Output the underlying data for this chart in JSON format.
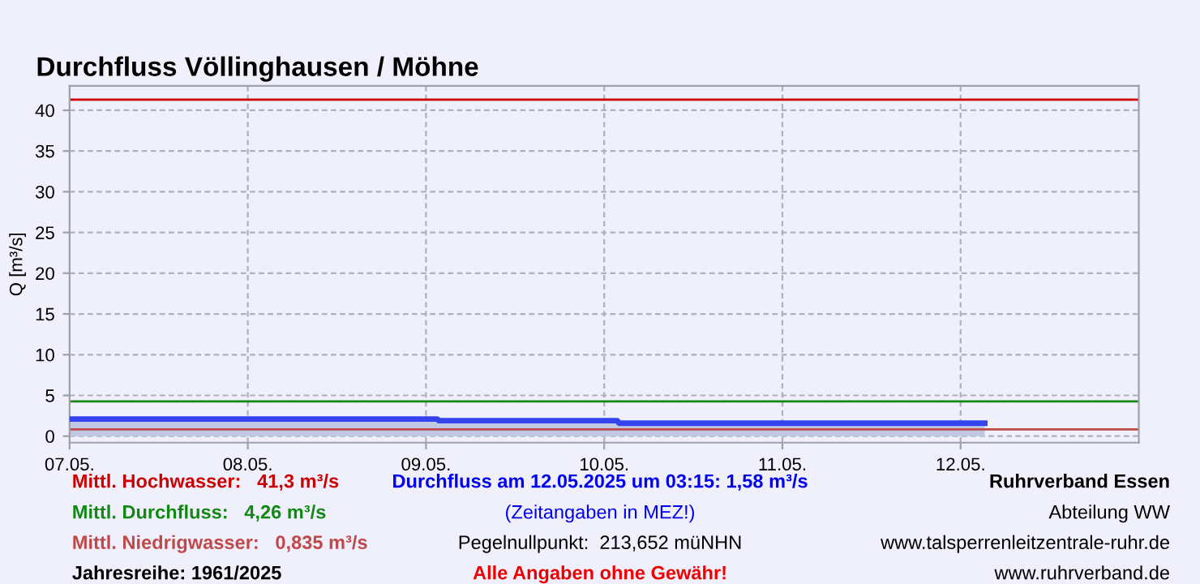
{
  "chart_data": {
    "type": "area",
    "title": "Durchfluss Völlinghausen / Möhne",
    "ylabel": "Q [m³/s]",
    "x": [
      "2025-05-07T00:00",
      "2025-05-09T01:30",
      "2025-05-09T01:45",
      "2025-05-10T01:45",
      "2025-05-10T02:00",
      "2025-05-12T03:15"
    ],
    "series": [
      {
        "color": "#3344ee",
        "values": [
          2.1,
          2.1,
          1.9,
          1.9,
          1.6,
          1.6
        ]
      }
    ],
    "xlim": [
      "2025-05-07T00:00",
      "2025-05-13T00:00"
    ],
    "xticks": [
      {
        "value": "2025-05-07",
        "label": "07.05."
      },
      {
        "value": "2025-05-08",
        "label": "08.05."
      },
      {
        "value": "2025-05-09",
        "label": "09.05."
      },
      {
        "value": "2025-05-10",
        "label": "10.05."
      },
      {
        "value": "2025-05-11",
        "label": "11.05."
      },
      {
        "value": "2025-05-12",
        "label": "12.05."
      }
    ],
    "ylim": [
      -0.8,
      43
    ],
    "yticks": [
      0,
      5,
      10,
      15,
      20,
      25,
      30,
      35,
      40
    ],
    "grid": true,
    "ref_lines": [
      {
        "axis": "y",
        "value": 41.3,
        "label": "Mittl. Hochwasser:   41,3 m³/s",
        "color": "#cc0000"
      },
      {
        "axis": "y",
        "value": 4.26,
        "label": "Mittl. Durchfluss:   4,26 m³/s",
        "color": "#118811"
      },
      {
        "axis": "y",
        "value": 0.835,
        "label": "Mittl. Niedrigwasser:   0,835 m³/s",
        "color": "#c04848"
      }
    ],
    "annotations": [
      "Durchfluss am 12.05.2025 um 03:15: 1,58 m³/s",
      "(Zeitangaben in MEZ!)",
      "Pegelnullpunkt:  213,652 müNHN",
      "Alle Angaben ohne Gewähr!",
      "Jahresreihe: 1961/2025",
      "Ruhrverband Essen",
      "Abteilung WW",
      "www.talsperrenleitzentrale-ruhr.de",
      "www.ruhrverband.de"
    ]
  }
}
